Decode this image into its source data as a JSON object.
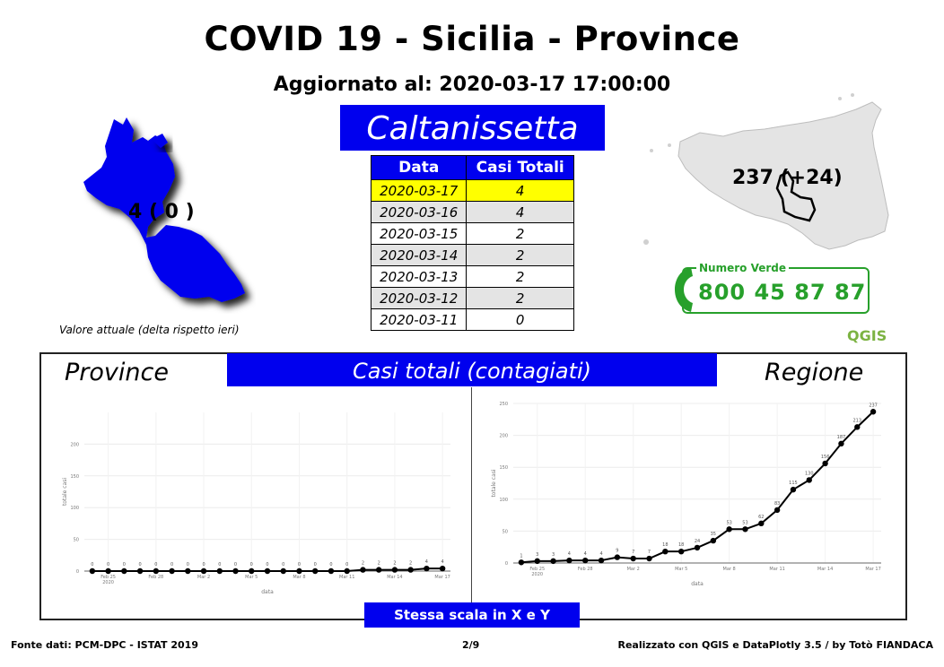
{
  "header": {
    "title": "COVID 19 - Sicilia - Province",
    "updated": "Aggiornato al: 2020-03-17 17:00:00"
  },
  "province": {
    "name": "Caltanissetta",
    "map_label": "4 ( 0 )",
    "caption": "Valore attuale (delta rispetto ieri)"
  },
  "table": {
    "headers": [
      "Data",
      "Casi Totali"
    ],
    "rows": [
      {
        "date": "2020-03-17",
        "value": "4"
      },
      {
        "date": "2020-03-16",
        "value": "4"
      },
      {
        "date": "2020-03-15",
        "value": "2"
      },
      {
        "date": "2020-03-14",
        "value": "2"
      },
      {
        "date": "2020-03-13",
        "value": "2"
      },
      {
        "date": "2020-03-12",
        "value": "2"
      },
      {
        "date": "2020-03-11",
        "value": "0"
      }
    ]
  },
  "region": {
    "map_label": "237 (+24)"
  },
  "hotline": {
    "title": "Numero Verde",
    "number": "800 45 87 87"
  },
  "logo": {
    "text": "QGIS"
  },
  "panel": {
    "banner": "Casi totali (contagiati)",
    "left_title": "Province",
    "right_title": "Regione",
    "scale_note": "Stessa scala in X e Y"
  },
  "footer": {
    "source": "Fonte dati: PCM-DPC - ISTAT 2019",
    "page": "2/9",
    "credits": "Realizzato con QGIS e DataPlotly 3.5 / by Totò FIANDACA"
  },
  "colors": {
    "accent_blue": "#0000ee",
    "highlight_yellow": "#ffff00",
    "hotline_green": "#27a02b",
    "qgis_green": "#7cb342"
  },
  "chart_data": [
    {
      "type": "line",
      "title": "Province",
      "xlabel": "data",
      "ylabel": "totale casi",
      "x_ticks": [
        "Feb 25\n2020",
        "Feb 28",
        "Mar 2",
        "Mar 5",
        "Mar 8",
        "Mar 11",
        "Mar 14",
        "Mar 17"
      ],
      "x": [
        "2020-02-24",
        "2020-02-25",
        "2020-02-26",
        "2020-02-27",
        "2020-02-28",
        "2020-02-29",
        "2020-03-01",
        "2020-03-02",
        "2020-03-03",
        "2020-03-04",
        "2020-03-05",
        "2020-03-06",
        "2020-03-07",
        "2020-03-08",
        "2020-03-09",
        "2020-03-10",
        "2020-03-11",
        "2020-03-12",
        "2020-03-13",
        "2020-03-14",
        "2020-03-15",
        "2020-03-16",
        "2020-03-17"
      ],
      "series": [
        {
          "values": [
            0,
            0,
            0,
            0,
            0,
            0,
            0,
            0,
            0,
            0,
            0,
            0,
            0,
            0,
            0,
            0,
            0,
            2,
            2,
            2,
            2,
            4,
            4
          ]
        }
      ],
      "y_ticks": [
        0,
        50,
        100,
        150,
        200
      ],
      "ylim": [
        0,
        250
      ],
      "grid": true
    },
    {
      "type": "line",
      "title": "Regione",
      "xlabel": "data",
      "ylabel": "totale casi",
      "x_ticks": [
        "Feb 25\n2020",
        "Feb 28",
        "Mar 2",
        "Mar 5",
        "Mar 8",
        "Mar 11",
        "Mar 14",
        "Mar 17"
      ],
      "x": [
        "2020-02-24",
        "2020-02-25",
        "2020-02-26",
        "2020-02-27",
        "2020-02-28",
        "2020-02-29",
        "2020-03-01",
        "2020-03-02",
        "2020-03-03",
        "2020-03-04",
        "2020-03-05",
        "2020-03-06",
        "2020-03-07",
        "2020-03-08",
        "2020-03-09",
        "2020-03-10",
        "2020-03-11",
        "2020-03-12",
        "2020-03-13",
        "2020-03-14",
        "2020-03-15",
        "2020-03-16",
        "2020-03-17"
      ],
      "series": [
        {
          "values": [
            1,
            3,
            3,
            4,
            4,
            4,
            9,
            7,
            7,
            18,
            18,
            24,
            35,
            53,
            53,
            62,
            83,
            115,
            130,
            156,
            187,
            213,
            237
          ]
        }
      ],
      "y_ticks": [
        0,
        50,
        100,
        150,
        200,
        250
      ],
      "ylim": [
        0,
        250
      ],
      "grid": true
    }
  ]
}
